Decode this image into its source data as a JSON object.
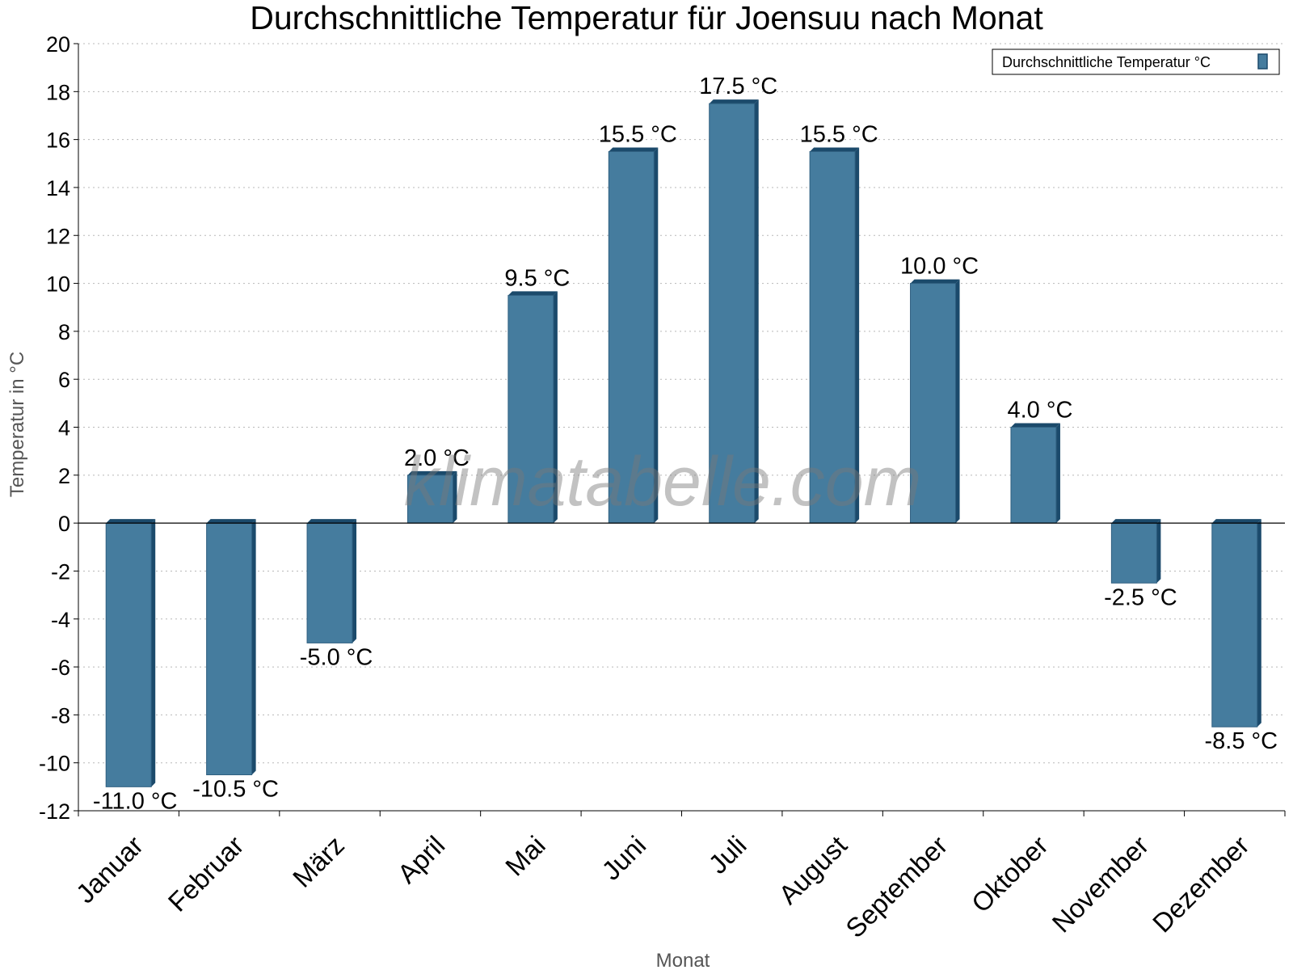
{
  "chart_data": {
    "type": "bar",
    "title": "Durchschnittliche Temperatur für Joensuu nach Monat",
    "xlabel": "Monat",
    "ylabel": "Temperatur in °C",
    "ylim": [
      -12,
      20
    ],
    "yticks": [
      -12,
      -10,
      -8,
      -6,
      -4,
      -2,
      0,
      2,
      4,
      6,
      8,
      10,
      12,
      14,
      16,
      18,
      20
    ],
    "grid": true,
    "legend_position": "top-right",
    "value_suffix": " °C",
    "watermark": "klimatabelle.com",
    "categories": [
      "Januar",
      "Februar",
      "März",
      "April",
      "Mai",
      "Juni",
      "Juli",
      "August",
      "September",
      "Oktober",
      "November",
      "Dezember"
    ],
    "series": [
      {
        "name": "Durchschnittliche Temperatur °C",
        "color": "#457c9e",
        "values": [
          -11.0,
          -10.5,
          -5.0,
          2.0,
          9.5,
          15.5,
          17.5,
          15.5,
          10.0,
          4.0,
          -2.5,
          -8.5
        ]
      }
    ]
  }
}
